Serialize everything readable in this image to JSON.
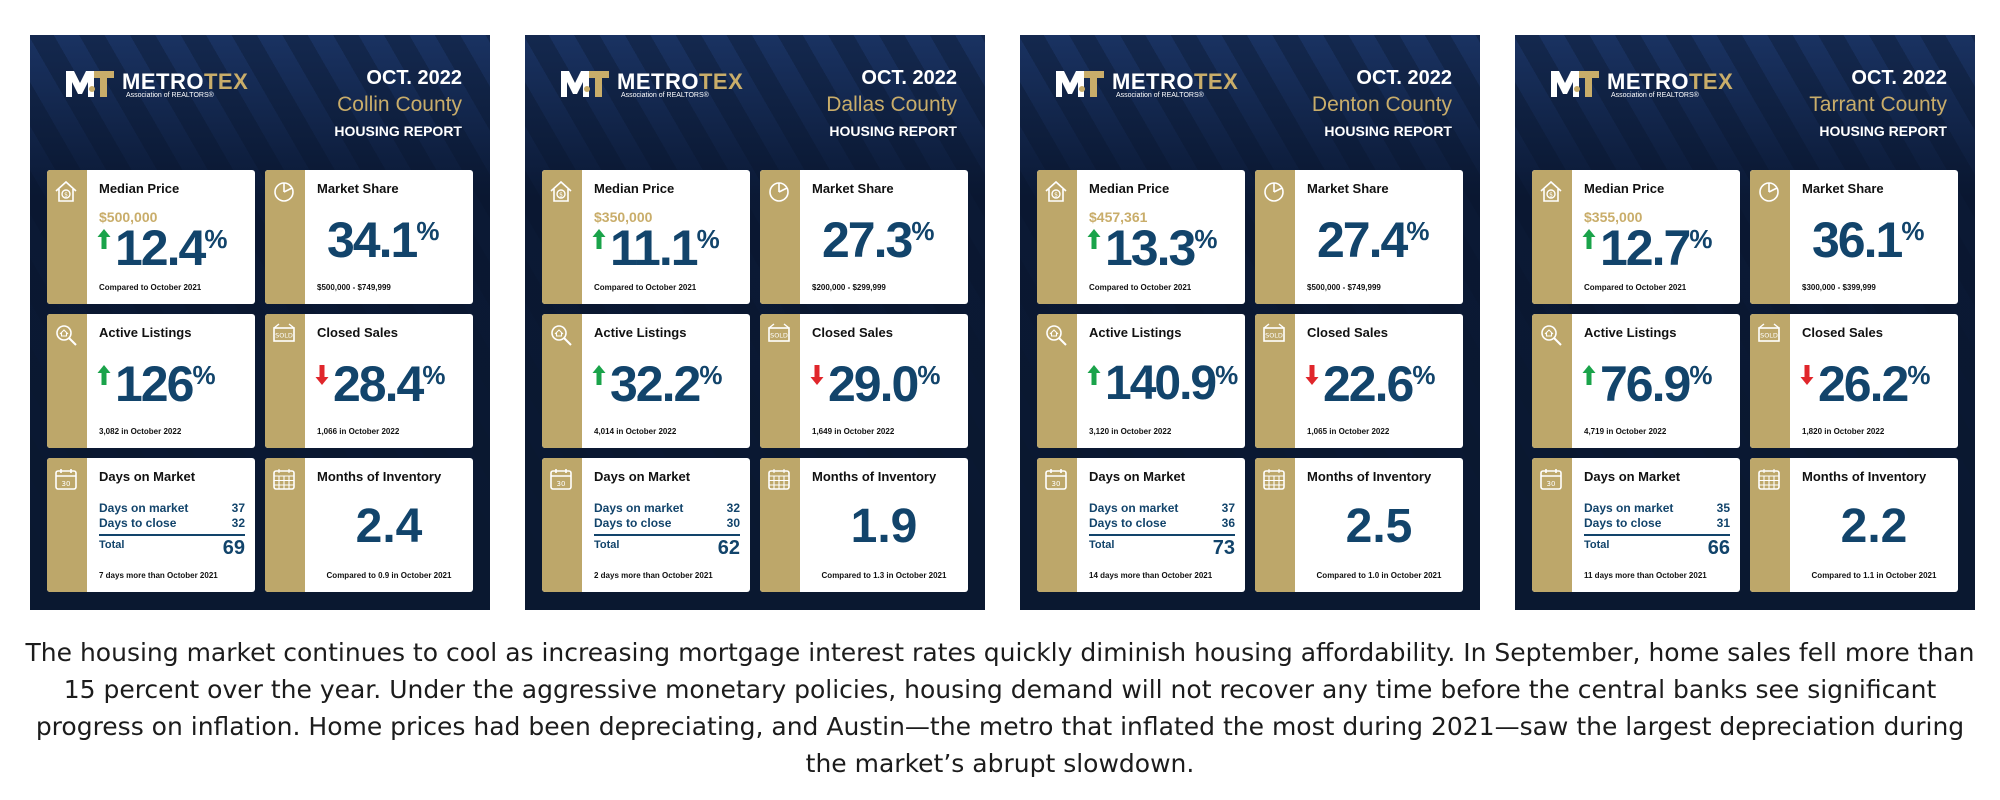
{
  "brand": {
    "name_part1": "METRO",
    "name_part2": "TEX",
    "tagline": "Association of REALTORS®",
    "gold": "#c9ad6a",
    "navy": "#12446b",
    "up_color": "#1aa34a",
    "down_color": "#e0262b"
  },
  "reports": [
    {
      "date": "OCT. 2022",
      "county": "Collin County",
      "report_label": "HOUSING REPORT",
      "median_price": {
        "title": "Median Price",
        "price": "$500,000",
        "direction": "up",
        "value": "12.4",
        "unit": "%",
        "note": "Compared to October 2021"
      },
      "market_share": {
        "title": "Market Share",
        "value": "34.1",
        "unit": "%",
        "note": "$500,000 - $749,999"
      },
      "active_listings": {
        "title": "Active Listings",
        "direction": "up",
        "value": "126",
        "unit": "%",
        "note": "3,082 in October 2022"
      },
      "closed_sales": {
        "title": "Closed Sales",
        "direction": "down",
        "value": "28.4",
        "unit": "%",
        "note": "1,066 in October 2022"
      },
      "days_on_market": {
        "title": "Days on Market",
        "row1_label": "Days on market",
        "row1_value": "37",
        "row2_label": "Days to close",
        "row2_value": "32",
        "total_label": "Total",
        "total_value": "69",
        "note": "7 days more than October 2021"
      },
      "months_inventory": {
        "title": "Months of Inventory",
        "value": "2.4",
        "note": "Compared to 0.9 in October 2021"
      }
    },
    {
      "date": "OCT. 2022",
      "county": "Dallas County",
      "report_label": "HOUSING REPORT",
      "median_price": {
        "title": "Median Price",
        "price": "$350,000",
        "direction": "up",
        "value": "11.1",
        "unit": "%",
        "note": "Compared to October 2021"
      },
      "market_share": {
        "title": "Market Share",
        "value": "27.3",
        "unit": "%",
        "note": "$200,000 - $299,999"
      },
      "active_listings": {
        "title": "Active Listings",
        "direction": "up",
        "value": "32.2",
        "unit": "%",
        "note": "4,014 in October 2022"
      },
      "closed_sales": {
        "title": "Closed Sales",
        "direction": "down",
        "value": "29.0",
        "unit": "%",
        "note": "1,649 in October 2022"
      },
      "days_on_market": {
        "title": "Days on Market",
        "row1_label": "Days on market",
        "row1_value": "32",
        "row2_label": "Days to close",
        "row2_value": "30",
        "total_label": "Total",
        "total_value": "62",
        "note": "2 days more than October 2021"
      },
      "months_inventory": {
        "title": "Months of Inventory",
        "value": "1.9",
        "note": "Compared to 1.3 in October 2021"
      }
    },
    {
      "date": "OCT. 2022",
      "county": "Denton County",
      "report_label": "HOUSING REPORT",
      "median_price": {
        "title": "Median Price",
        "price": "$457,361",
        "direction": "up",
        "value": "13.3",
        "unit": "%",
        "note": "Compared to October 2021"
      },
      "market_share": {
        "title": "Market Share",
        "value": "27.4",
        "unit": "%",
        "note": "$500,000 - $749,999"
      },
      "active_listings": {
        "title": "Active Listings",
        "direction": "up",
        "value": "140.9",
        "unit": "%",
        "note": "3,120 in October 2022"
      },
      "closed_sales": {
        "title": "Closed Sales",
        "direction": "down",
        "value": "22.6",
        "unit": "%",
        "note": "1,065 in October 2022"
      },
      "days_on_market": {
        "title": "Days on Market",
        "row1_label": "Days on market",
        "row1_value": "37",
        "row2_label": "Days to close",
        "row2_value": "36",
        "total_label": "Total",
        "total_value": "73",
        "note": "14 days more than October 2021"
      },
      "months_inventory": {
        "title": "Months of Inventory",
        "value": "2.5",
        "note": "Compared to 1.0 in October 2021"
      }
    },
    {
      "date": "OCT. 2022",
      "county": "Tarrant County",
      "report_label": "HOUSING REPORT",
      "median_price": {
        "title": "Median Price",
        "price": "$355,000",
        "direction": "up",
        "value": "12.7",
        "unit": "%",
        "note": "Compared to October 2021"
      },
      "market_share": {
        "title": "Market Share",
        "value": "36.1",
        "unit": "%",
        "note": "$300,000 - $399,999"
      },
      "active_listings": {
        "title": "Active Listings",
        "direction": "up",
        "value": "76.9",
        "unit": "%",
        "note": "4,719 in October 2022"
      },
      "closed_sales": {
        "title": "Closed Sales",
        "direction": "down",
        "value": "26.2",
        "unit": "%",
        "note": "1,820 in October 2022"
      },
      "days_on_market": {
        "title": "Days on Market",
        "row1_label": "Days on market",
        "row1_value": "35",
        "row2_label": "Days to close",
        "row2_value": "31",
        "total_label": "Total",
        "total_value": "66",
        "note": "11 days more than October 2021"
      },
      "months_inventory": {
        "title": "Months of Inventory",
        "value": "2.2",
        "note": "Compared to 1.1 in October 2021"
      }
    }
  ],
  "caption": "The housing market continues to cool as increasing mortgage interest rates quickly diminish housing affordability. In September, home sales fell more than 15 percent over the year. Under the aggressive monetary policies, housing demand will not recover any time before the central banks see significant progress on inflation. Home prices had been depreciating, and Austin—the metro that inflated the most during 2021—saw the largest depreciation during the market’s abrupt slowdown."
}
